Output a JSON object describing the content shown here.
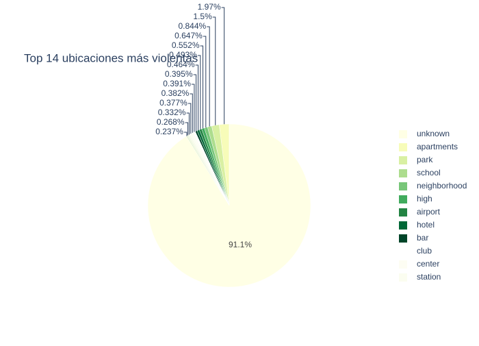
{
  "chart_data": {
    "type": "pie",
    "title": "Top 14 ubicaciones más violentas",
    "categories": [
      "unknown",
      "apartments",
      "park",
      "school",
      "neighborhood",
      "high",
      "airport",
      "hotel",
      "bar",
      "club",
      "center",
      "station",
      null,
      null,
      null
    ],
    "values": [
      91.1,
      1.97,
      1.5,
      0.844,
      0.647,
      0.552,
      0.493,
      0.464,
      0.395,
      0.391,
      0.382,
      0.377,
      0.332,
      0.268,
      0.237
    ],
    "value_labels": [
      "91.1%",
      "1.97%",
      "1.5%",
      "0.844%",
      "0.647%",
      "0.552%",
      "0.493%",
      "0.464%",
      "0.395%",
      "0.391%",
      "0.382%",
      "0.377%",
      "0.332%",
      "0.268%",
      "0.237%"
    ],
    "colors": [
      "#ffffe5",
      "#f7fcb9",
      "#d9f0a3",
      "#addd8e",
      "#78c679",
      "#41ab5d",
      "#238443",
      "#006837",
      "#004529",
      "#ffffff",
      "#fdfdf3",
      "#fbfdf0",
      "#f7fbe8",
      "#eef7dc",
      "#e5f3d0"
    ]
  }
}
